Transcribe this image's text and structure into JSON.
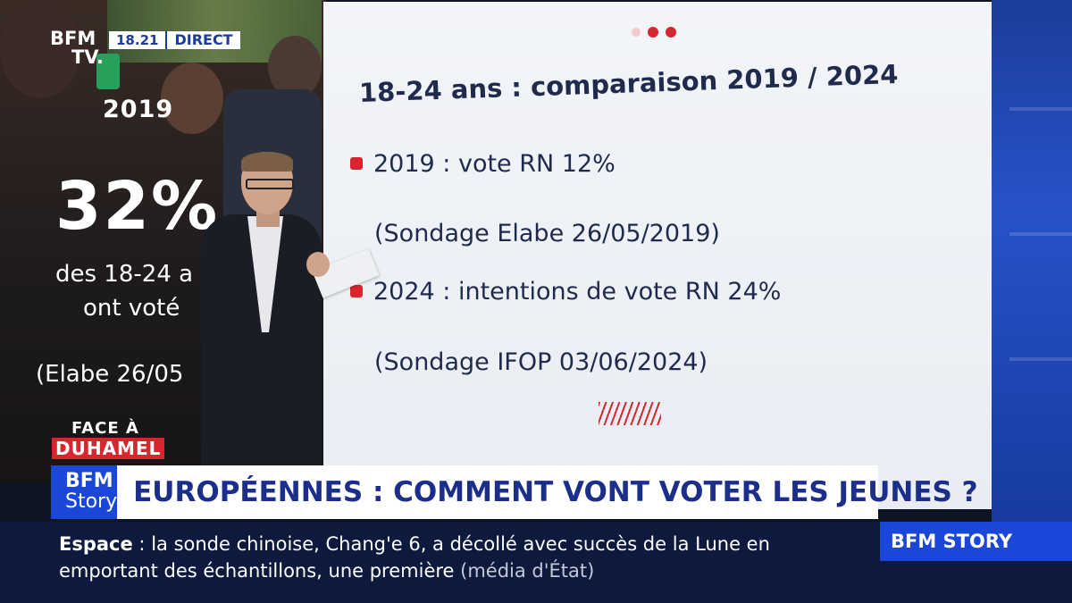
{
  "channel": {
    "logo_line1": "BFM",
    "logo_line2": "TV.",
    "time": "18.21",
    "live": "DIRECT"
  },
  "left_panel": {
    "year": "2019",
    "value": "32%",
    "line1": "des 18-24 a",
    "line2": "ont voté",
    "line3": "(Elabe 26/05"
  },
  "show_logo": {
    "top": "FACE À",
    "bottom": "DUHAMEL"
  },
  "screen": {
    "title": "18-24 ans : comparaison 2019 / 2024",
    "items": [
      {
        "text": "2019 : vote RN 12%",
        "source": "(Sondage Elabe 26/05/2019)"
      },
      {
        "text": "2024 : intentions de vote RN 24%",
        "source": "(Sondage IFOP 03/06/2024)"
      }
    ]
  },
  "headline": {
    "logo_line1": "BFM",
    "logo_line2": "Story",
    "text": "EUROPÉENNES : COMMENT VONT VOTER LES JEUNES ?"
  },
  "ticker": {
    "label": "Espace",
    "colon": " : ",
    "text": "la sonde chinoise, Chang'e 6, a décollé avec succès de la Lune en emportant des échantillons, une première",
    "note": "(média d'État)",
    "brand": "BFM STORY"
  },
  "colors": {
    "accent_red": "#d7262d",
    "brand_blue": "#1a47d8",
    "text_navy": "#1f2a4d",
    "ticker_bg": "#0d1a3e"
  }
}
